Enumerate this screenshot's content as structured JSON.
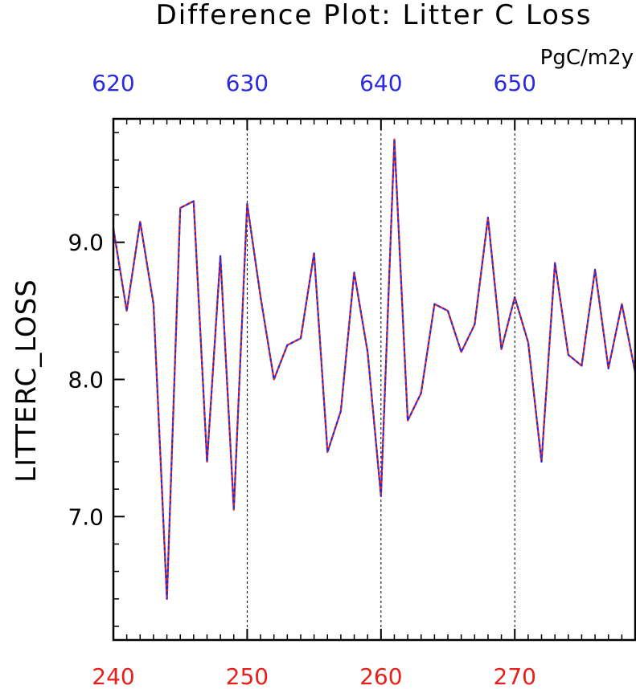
{
  "chart_data": {
    "type": "line",
    "title": "Difference Plot: Litter C Loss",
    "units": "PgC/m2y",
    "ylabel": "LITTERC_LOSS",
    "xlabel": "",
    "xlim": [
      240,
      279
    ],
    "ylim": [
      6.1,
      9.9
    ],
    "x_ticks_bottom": [
      240,
      250,
      260,
      270
    ],
    "x_ticks_top": [
      620,
      630,
      640,
      650
    ],
    "y_ticks": [
      7.0,
      8.0,
      9.0
    ],
    "y_tick_labels": [
      "7.0",
      "8.0",
      "9.0"
    ],
    "grid": "vertical dashed at major x ticks",
    "colors": {
      "bottom_axis_labels": "#e8201c",
      "top_axis_labels": "#2b2bde",
      "series_a": "#e8201c",
      "series_b": "#2b2bde",
      "axes": "#000000",
      "grid": "#000000"
    },
    "x": [
      240,
      241,
      242,
      243,
      244,
      245,
      246,
      247,
      248,
      249,
      250,
      251,
      252,
      253,
      254,
      255,
      256,
      257,
      258,
      259,
      260,
      261,
      262,
      263,
      264,
      265,
      266,
      267,
      268,
      269,
      270,
      271,
      272,
      273,
      274,
      275,
      276,
      277,
      278,
      279
    ],
    "series": [
      {
        "values": [
          9.1,
          8.5,
          9.15,
          8.55,
          6.4,
          9.25,
          9.3,
          7.4,
          8.9,
          7.05,
          9.28,
          8.6,
          8.0,
          8.25,
          8.3,
          8.92,
          7.47,
          7.77,
          8.78,
          8.2,
          7.15,
          9.75,
          7.7,
          7.9,
          8.55,
          8.5,
          8.2,
          8.4,
          9.18,
          8.22,
          8.6,
          8.27,
          7.4,
          8.85,
          8.18,
          8.1,
          8.8,
          8.08,
          8.55,
          8.05
        ]
      },
      {
        "values": [
          9.1,
          8.5,
          9.15,
          8.55,
          6.4,
          9.25,
          9.3,
          7.4,
          8.9,
          7.05,
          9.28,
          8.6,
          8.0,
          8.25,
          8.3,
          8.92,
          7.47,
          7.77,
          8.78,
          8.2,
          7.15,
          9.75,
          7.7,
          7.9,
          8.55,
          8.5,
          8.2,
          8.4,
          9.18,
          8.22,
          8.6,
          8.27,
          7.4,
          8.85,
          8.18,
          8.1,
          8.8,
          8.08,
          8.55,
          8.05
        ]
      }
    ]
  }
}
